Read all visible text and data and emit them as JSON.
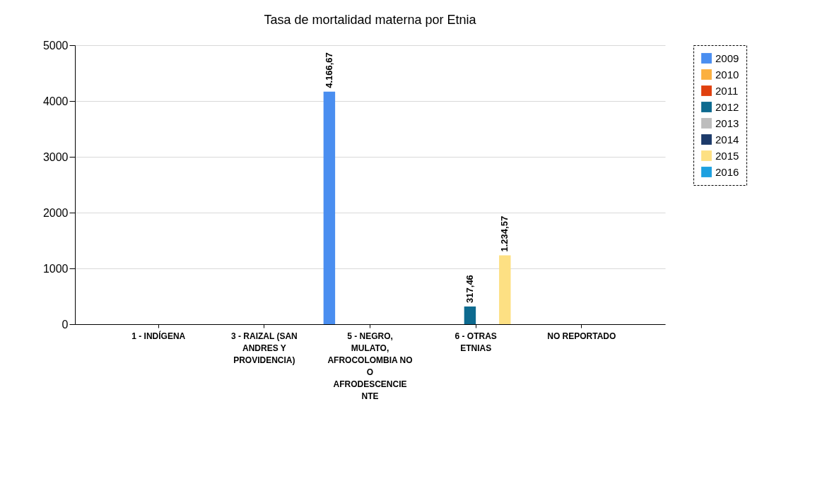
{
  "chart_data": {
    "type": "bar",
    "title": "Tasa de mortalidad materna por Etnia",
    "categories": [
      "1 - INDÍGENA",
      "3 - RAIZAL (SAN ANDRES Y PROVIDENCIA)",
      "5 - NEGRO, MULATO, AFROCOLOMBIA NO O AFRODESCENCIENTE",
      "6 - OTRAS ETNIAS",
      "NO REPORTADO"
    ],
    "series": [
      {
        "name": "2009",
        "color": "#4a8ef0",
        "values": [
          null,
          null,
          4166.67,
          null,
          null
        ],
        "value_labels": [
          null,
          null,
          "4.166,67",
          null,
          null
        ]
      },
      {
        "name": "2010",
        "color": "#fbb040",
        "values": [
          null,
          null,
          null,
          null,
          null
        ]
      },
      {
        "name": "2011",
        "color": "#e0400f",
        "values": [
          null,
          null,
          null,
          null,
          null
        ]
      },
      {
        "name": "2012",
        "color": "#0d6a8f",
        "values": [
          null,
          null,
          null,
          317.46,
          null
        ],
        "value_labels": [
          null,
          null,
          null,
          "317,46",
          null
        ]
      },
      {
        "name": "2013",
        "color": "#bdbdbd",
        "values": [
          null,
          null,
          null,
          null,
          null
        ]
      },
      {
        "name": "2014",
        "color": "#1c3a6a",
        "values": [
          null,
          null,
          null,
          null,
          null
        ]
      },
      {
        "name": "2015",
        "color": "#fde083",
        "values": [
          null,
          null,
          null,
          1234.57,
          null
        ],
        "value_labels": [
          null,
          null,
          null,
          "1.234,57",
          null
        ]
      },
      {
        "name": "2016",
        "color": "#1da0e0",
        "values": [
          null,
          null,
          null,
          null,
          null
        ]
      }
    ],
    "ylim": [
      0,
      5000
    ],
    "yticks": [
      0,
      1000,
      2000,
      3000,
      4000,
      5000
    ],
    "grid": "y",
    "legend": "top right"
  }
}
